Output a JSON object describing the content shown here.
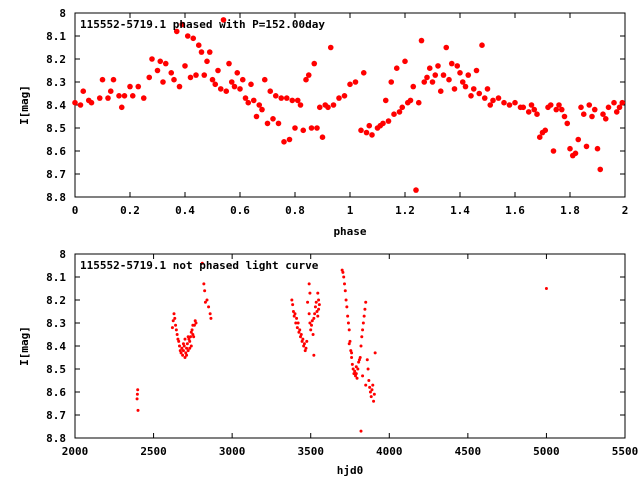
{
  "chart_data": [
    {
      "type": "scatter",
      "title": "115552-5719.1 phased with P=152.00day",
      "xlabel": "phase",
      "ylabel": "I[mag]",
      "xlim": [
        0,
        2
      ],
      "ylim": [
        8.8,
        8
      ],
      "y_inverted": true,
      "xticks": [
        "0",
        "0.2",
        "0.4",
        "0.6",
        "0.8",
        "1",
        "1.2",
        "1.4",
        "1.6",
        "1.8",
        "2"
      ],
      "yticks": [
        "8",
        "8.1",
        "8.2",
        "8.3",
        "8.4",
        "8.5",
        "8.6",
        "8.7",
        "8.8"
      ],
      "marker_color": "#ff0000",
      "points": [
        [
          0.0,
          8.39
        ],
        [
          0.02,
          8.4
        ],
        [
          0.03,
          8.34
        ],
        [
          0.05,
          8.38
        ],
        [
          0.06,
          8.39
        ],
        [
          0.09,
          8.37
        ],
        [
          0.1,
          8.29
        ],
        [
          0.12,
          8.37
        ],
        [
          0.13,
          8.34
        ],
        [
          0.14,
          8.29
        ],
        [
          0.16,
          8.36
        ],
        [
          0.17,
          8.41
        ],
        [
          0.18,
          8.36
        ],
        [
          0.2,
          8.32
        ],
        [
          0.21,
          8.36
        ],
        [
          0.23,
          8.32
        ],
        [
          0.25,
          8.37
        ],
        [
          0.27,
          8.28
        ],
        [
          0.28,
          8.2
        ],
        [
          0.3,
          8.25
        ],
        [
          0.31,
          8.21
        ],
        [
          0.32,
          8.3
        ],
        [
          0.33,
          8.22
        ],
        [
          0.35,
          8.26
        ],
        [
          0.36,
          8.29
        ],
        [
          0.37,
          8.08
        ],
        [
          0.38,
          8.32
        ],
        [
          0.39,
          8.05
        ],
        [
          0.4,
          8.23
        ],
        [
          0.41,
          8.1
        ],
        [
          0.42,
          8.28
        ],
        [
          0.43,
          8.11
        ],
        [
          0.44,
          8.27
        ],
        [
          0.45,
          8.14
        ],
        [
          0.46,
          8.17
        ],
        [
          0.47,
          8.27
        ],
        [
          0.48,
          8.21
        ],
        [
          0.49,
          8.17
        ],
        [
          0.5,
          8.29
        ],
        [
          0.51,
          8.31
        ],
        [
          0.52,
          8.25
        ],
        [
          0.53,
          8.33
        ],
        [
          0.54,
          8.03
        ],
        [
          0.55,
          8.34
        ],
        [
          0.56,
          8.22
        ],
        [
          0.57,
          8.3
        ],
        [
          0.58,
          8.32
        ],
        [
          0.59,
          8.26
        ],
        [
          0.6,
          8.33
        ],
        [
          0.61,
          8.29
        ],
        [
          0.62,
          8.37
        ],
        [
          0.63,
          8.39
        ],
        [
          0.64,
          8.31
        ],
        [
          0.65,
          8.38
        ],
        [
          0.66,
          8.45
        ],
        [
          0.67,
          8.4
        ],
        [
          0.68,
          8.42
        ],
        [
          0.69,
          8.29
        ],
        [
          0.7,
          8.48
        ],
        [
          0.71,
          8.34
        ],
        [
          0.72,
          8.46
        ],
        [
          0.73,
          8.36
        ],
        [
          0.74,
          8.48
        ],
        [
          0.75,
          8.37
        ],
        [
          0.76,
          8.56
        ],
        [
          0.77,
          8.37
        ],
        [
          0.78,
          8.55
        ],
        [
          0.79,
          8.38
        ],
        [
          0.8,
          8.5
        ],
        [
          0.81,
          8.38
        ],
        [
          0.82,
          8.4
        ],
        [
          0.83,
          8.51
        ],
        [
          0.84,
          8.29
        ],
        [
          0.85,
          8.27
        ],
        [
          0.86,
          8.5
        ],
        [
          0.87,
          8.22
        ],
        [
          0.88,
          8.5
        ],
        [
          0.89,
          8.41
        ],
        [
          0.9,
          8.54
        ],
        [
          0.91,
          8.4
        ],
        [
          0.92,
          8.41
        ],
        [
          0.93,
          8.15
        ],
        [
          0.94,
          8.4
        ],
        [
          0.96,
          8.37
        ],
        [
          0.98,
          8.36
        ],
        [
          1.0,
          8.31
        ],
        [
          1.02,
          8.3
        ],
        [
          1.04,
          8.51
        ],
        [
          1.05,
          8.26
        ],
        [
          1.06,
          8.52
        ],
        [
          1.07,
          8.49
        ],
        [
          1.08,
          8.53
        ],
        [
          1.1,
          8.5
        ],
        [
          1.11,
          8.49
        ],
        [
          1.12,
          8.48
        ],
        [
          1.13,
          8.38
        ],
        [
          1.14,
          8.47
        ],
        [
          1.15,
          8.3
        ],
        [
          1.16,
          8.44
        ],
        [
          1.17,
          8.24
        ],
        [
          1.18,
          8.43
        ],
        [
          1.19,
          8.41
        ],
        [
          1.2,
          8.21
        ],
        [
          1.21,
          8.39
        ],
        [
          1.22,
          8.38
        ],
        [
          1.23,
          8.32
        ],
        [
          1.24,
          8.77
        ],
        [
          1.25,
          8.39
        ],
        [
          1.26,
          8.12
        ],
        [
          1.27,
          8.3
        ],
        [
          1.28,
          8.28
        ],
        [
          1.29,
          8.24
        ],
        [
          1.3,
          8.3
        ],
        [
          1.31,
          8.27
        ],
        [
          1.32,
          8.23
        ],
        [
          1.33,
          8.34
        ],
        [
          1.34,
          8.27
        ],
        [
          1.35,
          8.15
        ],
        [
          1.36,
          8.29
        ],
        [
          1.37,
          8.22
        ],
        [
          1.38,
          8.33
        ],
        [
          1.39,
          8.23
        ],
        [
          1.4,
          8.26
        ],
        [
          1.41,
          8.3
        ],
        [
          1.42,
          8.32
        ],
        [
          1.43,
          8.27
        ],
        [
          1.44,
          8.36
        ],
        [
          1.45,
          8.33
        ],
        [
          1.46,
          8.25
        ],
        [
          1.47,
          8.35
        ],
        [
          1.48,
          8.14
        ],
        [
          1.49,
          8.37
        ],
        [
          1.5,
          8.33
        ],
        [
          1.51,
          8.4
        ],
        [
          1.52,
          8.38
        ],
        [
          1.54,
          8.37
        ],
        [
          1.56,
          8.39
        ],
        [
          1.58,
          8.4
        ],
        [
          1.6,
          8.39
        ],
        [
          1.62,
          8.41
        ],
        [
          1.63,
          8.41
        ],
        [
          1.65,
          8.43
        ],
        [
          1.66,
          8.4
        ],
        [
          1.67,
          8.42
        ],
        [
          1.68,
          8.44
        ],
        [
          1.69,
          8.54
        ],
        [
          1.7,
          8.52
        ],
        [
          1.71,
          8.51
        ],
        [
          1.72,
          8.41
        ],
        [
          1.73,
          8.4
        ],
        [
          1.74,
          8.6
        ],
        [
          1.75,
          8.42
        ],
        [
          1.76,
          8.4
        ],
        [
          1.77,
          8.42
        ],
        [
          1.78,
          8.45
        ],
        [
          1.79,
          8.48
        ],
        [
          1.8,
          8.59
        ],
        [
          1.81,
          8.62
        ],
        [
          1.82,
          8.61
        ],
        [
          1.83,
          8.55
        ],
        [
          1.84,
          8.41
        ],
        [
          1.85,
          8.44
        ],
        [
          1.86,
          8.58
        ],
        [
          1.87,
          8.4
        ],
        [
          1.88,
          8.45
        ],
        [
          1.89,
          8.42
        ],
        [
          1.9,
          8.59
        ],
        [
          1.91,
          8.68
        ],
        [
          1.92,
          8.44
        ],
        [
          1.93,
          8.46
        ],
        [
          1.94,
          8.41
        ],
        [
          1.96,
          8.39
        ],
        [
          1.97,
          8.43
        ],
        [
          1.98,
          8.41
        ],
        [
          1.99,
          8.39
        ]
      ]
    },
    {
      "type": "scatter",
      "title": "115552-5719.1 not phased light curve",
      "xlabel": "hjd0",
      "ylabel": "I[mag]",
      "xlim": [
        2000,
        5500
      ],
      "ylim": [
        8.8,
        8
      ],
      "y_inverted": true,
      "xticks": [
        "2000",
        "2500",
        "3000",
        "3500",
        "4000",
        "4500",
        "5000",
        "5500"
      ],
      "yticks": [
        "8",
        "8.1",
        "8.2",
        "8.3",
        "8.4",
        "8.5",
        "8.6",
        "8.7",
        "8.8"
      ],
      "marker_color": "#ff0000",
      "points": [
        [
          2395,
          8.63
        ],
        [
          2397,
          8.61
        ],
        [
          2399,
          8.59
        ],
        [
          2401,
          8.68
        ],
        [
          2620,
          8.32
        ],
        [
          2625,
          8.29
        ],
        [
          2630,
          8.26
        ],
        [
          2635,
          8.28
        ],
        [
          2640,
          8.31
        ],
        [
          2645,
          8.33
        ],
        [
          2650,
          8.35
        ],
        [
          2655,
          8.37
        ],
        [
          2660,
          8.38
        ],
        [
          2665,
          8.4
        ],
        [
          2670,
          8.42
        ],
        [
          2675,
          8.43
        ],
        [
          2680,
          8.41
        ],
        [
          2685,
          8.44
        ],
        [
          2690,
          8.42
        ],
        [
          2695,
          8.4
        ],
        [
          2700,
          8.45
        ],
        [
          2705,
          8.43
        ],
        [
          2710,
          8.41
        ],
        [
          2715,
          8.39
        ],
        [
          2720,
          8.42
        ],
        [
          2725,
          8.37
        ],
        [
          2730,
          8.38
        ],
        [
          2735,
          8.36
        ],
        [
          2740,
          8.34
        ],
        [
          2745,
          8.33
        ],
        [
          2750,
          8.35
        ],
        [
          2755,
          8.36
        ],
        [
          2760,
          8.31
        ],
        [
          2765,
          8.29
        ],
        [
          2770,
          8.3
        ],
        [
          2690,
          8.39
        ],
        [
          2700,
          8.37
        ],
        [
          2710,
          8.44
        ],
        [
          2720,
          8.36
        ],
        [
          2730,
          8.41
        ],
        [
          2740,
          8.4
        ],
        [
          2750,
          8.31
        ],
        [
          2810,
          8.04
        ],
        [
          2820,
          8.13
        ],
        [
          2825,
          8.16
        ],
        [
          2830,
          8.21
        ],
        [
          2840,
          8.2
        ],
        [
          2850,
          8.23
        ],
        [
          2860,
          8.26
        ],
        [
          2865,
          8.28
        ],
        [
          3380,
          8.2
        ],
        [
          3385,
          8.22
        ],
        [
          3390,
          8.25
        ],
        [
          3395,
          8.27
        ],
        [
          3400,
          8.26
        ],
        [
          3405,
          8.3
        ],
        [
          3410,
          8.28
        ],
        [
          3415,
          8.32
        ],
        [
          3420,
          8.3
        ],
        [
          3425,
          8.34
        ],
        [
          3430,
          8.33
        ],
        [
          3435,
          8.36
        ],
        [
          3440,
          8.35
        ],
        [
          3445,
          8.38
        ],
        [
          3450,
          8.37
        ],
        [
          3455,
          8.4
        ],
        [
          3460,
          8.39
        ],
        [
          3465,
          8.42
        ],
        [
          3470,
          8.41
        ],
        [
          3475,
          8.38
        ],
        [
          3480,
          8.21
        ],
        [
          3490,
          8.26
        ],
        [
          3495,
          8.3
        ],
        [
          3500,
          8.33
        ],
        [
          3505,
          8.31
        ],
        [
          3510,
          8.29
        ],
        [
          3515,
          8.35
        ],
        [
          3520,
          8.28
        ],
        [
          3525,
          8.26
        ],
        [
          3530,
          8.23
        ],
        [
          3535,
          8.21
        ],
        [
          3540,
          8.25
        ],
        [
          3545,
          8.27
        ],
        [
          3550,
          8.24
        ],
        [
          3555,
          8.22
        ],
        [
          3520,
          8.44
        ],
        [
          3545,
          8.17
        ],
        [
          3550,
          8.2
        ],
        [
          3490,
          8.13
        ],
        [
          3495,
          8.17
        ],
        [
          3700,
          8.07
        ],
        [
          3705,
          8.08
        ],
        [
          3710,
          8.1
        ],
        [
          3715,
          8.13
        ],
        [
          3720,
          8.16
        ],
        [
          3725,
          8.2
        ],
        [
          3730,
          8.23
        ],
        [
          3735,
          8.27
        ],
        [
          3740,
          8.3
        ],
        [
          3745,
          8.33
        ],
        [
          3750,
          8.38
        ],
        [
          3755,
          8.42
        ],
        [
          3760,
          8.45
        ],
        [
          3765,
          8.48
        ],
        [
          3770,
          8.5
        ],
        [
          3775,
          8.52
        ],
        [
          3780,
          8.51
        ],
        [
          3785,
          8.53
        ],
        [
          3790,
          8.49
        ],
        [
          3795,
          8.54
        ],
        [
          3800,
          8.5
        ],
        [
          3805,
          8.47
        ],
        [
          3810,
          8.46
        ],
        [
          3815,
          8.45
        ],
        [
          3820,
          8.4
        ],
        [
          3825,
          8.36
        ],
        [
          3830,
          8.33
        ],
        [
          3835,
          8.3
        ],
        [
          3840,
          8.27
        ],
        [
          3845,
          8.24
        ],
        [
          3850,
          8.21
        ],
        [
          3820,
          8.77
        ],
        [
          3860,
          8.46
        ],
        [
          3865,
          8.5
        ],
        [
          3870,
          8.55
        ],
        [
          3875,
          8.58
        ],
        [
          3880,
          8.6
        ],
        [
          3885,
          8.62
        ],
        [
          3890,
          8.59
        ],
        [
          3895,
          8.57
        ],
        [
          3900,
          8.64
        ],
        [
          3905,
          8.61
        ],
        [
          3910,
          8.43
        ],
        [
          3745,
          8.39
        ],
        [
          3760,
          8.43
        ],
        [
          3790,
          8.52
        ],
        [
          3830,
          8.53
        ],
        [
          3850,
          8.57
        ],
        [
          5000,
          8.15
        ]
      ]
    }
  ]
}
